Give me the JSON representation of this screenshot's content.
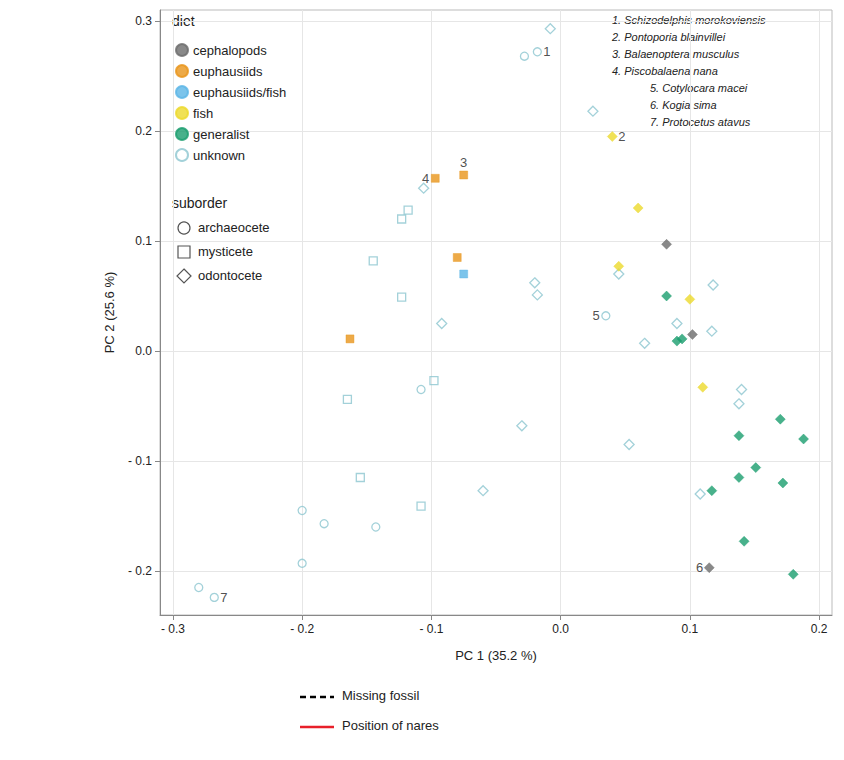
{
  "chart_data": {
    "type": "scatter",
    "x_label": "PC 1 (35.2 %)",
    "y_label": "PC 2 (25.6 %)",
    "xlim": [
      -0.31,
      0.21
    ],
    "ylim": [
      -0.24,
      0.31
    ],
    "xticks": [
      {
        "value": -0.3,
        "label": "- 0.3"
      },
      {
        "value": -0.2,
        "label": "- 0.2"
      },
      {
        "value": -0.1,
        "label": "- 0.1"
      },
      {
        "value": 0,
        "label": "0.0"
      },
      0.1,
      0.2
    ],
    "yticks": [
      {
        "value": -0.2,
        "label": "- 0.2"
      },
      {
        "value": -0.1,
        "label": "- 0.1"
      },
      {
        "value": 0,
        "label": "0.0"
      },
      0.1,
      0.2,
      0.3
    ],
    "grid": true,
    "legend": "top-left",
    "legend_title": "diet",
    "suborder_title": "suborder",
    "suborders": [
      {
        "name": "archaeocete",
        "marker": "circle"
      },
      {
        "name": "mysticete",
        "marker": "square"
      },
      {
        "name": "odontocete",
        "marker": "diamond"
      }
    ],
    "series": [
      {
        "name": "cephalopods",
        "color": "#6b6b6b",
        "marker": "filled",
        "values": [
          [
            0.082,
            0.097,
            "odontocete"
          ],
          [
            0.102,
            0.015,
            "odontocete"
          ],
          [
            0.115,
            -0.197,
            "odontocete"
          ]
        ]
      },
      {
        "name": "euphausiids",
        "color": "#e8951a",
        "marker": "filled",
        "values": [
          [
            -0.097,
            0.157,
            "mysticete"
          ],
          [
            -0.075,
            0.16,
            "mysticete"
          ],
          [
            -0.08,
            0.085,
            "mysticete"
          ],
          [
            -0.163,
            0.011,
            "mysticete"
          ]
        ]
      },
      {
        "name": "euphausiids/fish",
        "color": "#5bb5e6",
        "marker": "filled",
        "values": [
          [
            -0.075,
            0.07,
            "mysticete"
          ]
        ]
      },
      {
        "name": "fish",
        "color": "#ecd92c",
        "marker": "filled",
        "values": [
          [
            0.04,
            0.195,
            "odontocete"
          ],
          [
            0.06,
            0.13,
            "odontocete"
          ],
          [
            0.045,
            0.077,
            "odontocete"
          ],
          [
            0.1,
            0.047,
            "odontocete"
          ],
          [
            0.11,
            -0.033,
            "odontocete"
          ]
        ]
      },
      {
        "name": "generalist",
        "color": "#1a9e6e",
        "marker": "filled",
        "values": [
          [
            0.082,
            0.05,
            "odontocete"
          ],
          [
            0.09,
            0.009,
            "odontocete"
          ],
          [
            0.094,
            0.011,
            "odontocete"
          ],
          [
            0.138,
            -0.077,
            "odontocete"
          ],
          [
            0.17,
            -0.062,
            "odontocete"
          ],
          [
            0.188,
            -0.08,
            "odontocete"
          ],
          [
            0.138,
            -0.115,
            "odontocete"
          ],
          [
            0.151,
            -0.106,
            "odontocete"
          ],
          [
            0.172,
            -0.12,
            "odontocete"
          ],
          [
            0.117,
            -0.127,
            "odontocete"
          ],
          [
            0.142,
            -0.173,
            "odontocete"
          ],
          [
            0.18,
            -0.203,
            "odontocete"
          ]
        ]
      },
      {
        "name": "unknown",
        "color": "#8cc5d0",
        "marker": "hollow",
        "values": [
          [
            -0.018,
            0.272,
            "archaeocete"
          ],
          [
            -0.028,
            0.268,
            "archaeocete"
          ],
          [
            -0.28,
            -0.215,
            "archaeocete"
          ],
          [
            -0.268,
            -0.224,
            "archaeocete"
          ],
          [
            -0.2,
            -0.145,
            "archaeocete"
          ],
          [
            -0.183,
            -0.157,
            "archaeocete"
          ],
          [
            -0.2,
            -0.193,
            "archaeocete"
          ],
          [
            -0.143,
            -0.16,
            "archaeocete"
          ],
          [
            0.035,
            0.032,
            "archaeocete"
          ],
          [
            -0.108,
            -0.035,
            "archaeocete"
          ],
          [
            -0.123,
            0.12,
            "mysticete"
          ],
          [
            -0.118,
            0.128,
            "mysticete"
          ],
          [
            -0.145,
            0.082,
            "mysticete"
          ],
          [
            -0.123,
            0.049,
            "mysticete"
          ],
          [
            -0.098,
            -0.027,
            "mysticete"
          ],
          [
            -0.165,
            -0.044,
            "mysticete"
          ],
          [
            -0.155,
            -0.115,
            "mysticete"
          ],
          [
            -0.108,
            -0.141,
            "mysticete"
          ],
          [
            -0.008,
            0.293,
            "odontocete"
          ],
          [
            0.025,
            0.218,
            "odontocete"
          ],
          [
            -0.106,
            0.148,
            "odontocete"
          ],
          [
            -0.02,
            0.062,
            "odontocete"
          ],
          [
            -0.018,
            0.051,
            "odontocete"
          ],
          [
            -0.092,
            0.025,
            "odontocete"
          ],
          [
            0.045,
            0.07,
            "odontocete"
          ],
          [
            0.065,
            0.007,
            "odontocete"
          ],
          [
            0.09,
            0.025,
            "odontocete"
          ],
          [
            0.118,
            0.06,
            "odontocete"
          ],
          [
            0.117,
            0.018,
            "odontocete"
          ],
          [
            -0.03,
            -0.068,
            "odontocete"
          ],
          [
            0.053,
            -0.085,
            "odontocete"
          ],
          [
            -0.06,
            -0.127,
            "odontocete"
          ],
          [
            0.138,
            -0.048,
            "odontocete"
          ],
          [
            0.14,
            -0.035,
            "odontocete"
          ],
          [
            0.108,
            -0.13,
            "odontocete"
          ]
        ]
      }
    ],
    "annotations": [
      {
        "label": "1",
        "x": -0.018,
        "y": 0.272
      },
      {
        "label": "2",
        "x": 0.04,
        "y": 0.195
      },
      {
        "label": "3",
        "x": -0.075,
        "y": 0.16
      },
      {
        "label": "4",
        "x": -0.097,
        "y": 0.157
      },
      {
        "label": "5",
        "x": 0.035,
        "y": 0.032
      },
      {
        "label": "6",
        "x": 0.115,
        "y": -0.197
      },
      {
        "label": "7",
        "x": -0.268,
        "y": -0.224
      }
    ],
    "key": [
      "1. Schizodelphis morokoviensis",
      "2. Pontoporia blainvillei",
      "3. Balaenoptera musculus",
      "4. Piscobalaena nana",
      "5. Cotylocara macei",
      "6. Kogia sima",
      "7. Protocetus atavus"
    ],
    "line_legend": [
      {
        "name": "Missing fossil",
        "color": "#000000",
        "line_style": "dashed"
      },
      {
        "name": "Position of nares",
        "color": "#e8202a",
        "line_style": "solid"
      }
    ]
  }
}
